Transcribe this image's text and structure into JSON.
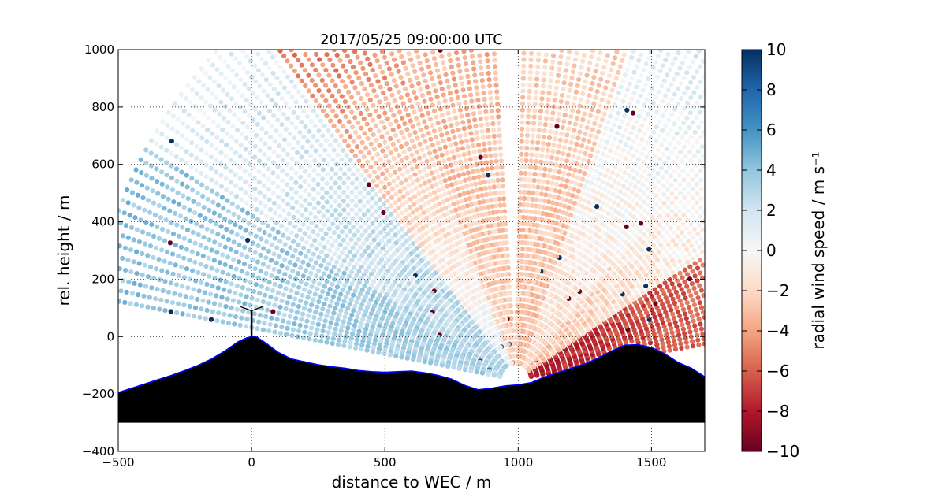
{
  "chart_data": {
    "type": "scatter",
    "subtype": "lidar RHI scan (radial wind speed, colour-coded) with terrain profile",
    "title": "2017/05/25 09:00:00 UTC",
    "xlabel": "distance to WEC / m",
    "ylabel": "rel. height / m",
    "xlim": [
      -500,
      1700
    ],
    "ylim": [
      -400,
      1000
    ],
    "xticks": [
      -500,
      0,
      500,
      1000,
      1500
    ],
    "xtick_labels": [
      "−500",
      "0",
      "500",
      "1000",
      "1500"
    ],
    "yticks": [
      -400,
      -200,
      0,
      200,
      400,
      600,
      800,
      1000
    ],
    "ytick_labels": [
      "−400",
      "−200",
      "0",
      "200",
      "400",
      "600",
      "800",
      "1000"
    ],
    "grid": true,
    "lidar_origin": {
      "x": 990,
      "y": -150
    },
    "turbine": {
      "x": 0,
      "hub_height": 90,
      "rotor_radius": 40
    },
    "terrain": {
      "x": [
        -500,
        -450,
        -400,
        -350,
        -300,
        -250,
        -200,
        -150,
        -100,
        -50,
        -20,
        0,
        20,
        50,
        100,
        150,
        200,
        250,
        300,
        350,
        400,
        450,
        500,
        550,
        600,
        650,
        700,
        750,
        800,
        850,
        900,
        950,
        1000,
        1050,
        1100,
        1150,
        1200,
        1250,
        1300,
        1350,
        1400,
        1450,
        1500,
        1550,
        1600,
        1650,
        1700
      ],
      "y": [
        -195,
        -180,
        -165,
        -150,
        -135,
        -118,
        -100,
        -78,
        -50,
        -18,
        -5,
        0,
        -2,
        -20,
        -55,
        -78,
        -88,
        -98,
        -105,
        -110,
        -118,
        -122,
        -124,
        -122,
        -120,
        -126,
        -135,
        -148,
        -170,
        -185,
        -180,
        -172,
        -168,
        -160,
        -140,
        -125,
        -110,
        -95,
        -75,
        -50,
        -30,
        -28,
        -38,
        -60,
        -90,
        -110,
        -140
      ],
      "base": -300
    },
    "colorbar": {
      "label": "radial wind speed / m s⁻¹",
      "range": [
        -10,
        10
      ],
      "ticks": [
        10,
        8,
        6,
        4,
        2,
        0,
        -2,
        -4,
        -6,
        -8,
        -10
      ],
      "tick_labels": [
        "10",
        "8",
        "6",
        "4",
        "2",
        "0",
        "−2",
        "−4",
        "−6",
        "−8",
        "−10"
      ],
      "colormap": "RdBu (red = negative, blue = positive)",
      "stops": [
        "#67001f",
        "#b2182b",
        "#d6604d",
        "#f4a582",
        "#fddbc7",
        "#f7f7f7",
        "#d1e5f0",
        "#92c5de",
        "#4393c3",
        "#2166ac",
        "#053061"
      ]
    },
    "scan": {
      "range_min_m": 60,
      "range_max_m": 1600,
      "regions": [
        {
          "from_deg": 150,
          "to_deg": 170,
          "inner_value": 3,
          "outer_value": 4,
          "note": "low beams toward turbine, light blue"
        },
        {
          "from_deg": 128,
          "to_deg": 150,
          "inner_value": 3,
          "outer_value": 1,
          "note": "pale blue"
        },
        {
          "from_deg": 112,
          "to_deg": 128,
          "inner_value": 1,
          "outer_value": -6,
          "note": "blue near ground, red aloft"
        },
        {
          "from_deg": 92,
          "to_deg": 112,
          "inner_value": -2,
          "outer_value": -4,
          "note": "light red"
        },
        {
          "from_deg": 70,
          "to_deg": 92,
          "inner_value": -3,
          "outer_value": -2,
          "note": "light red/pink"
        },
        {
          "from_deg": 48,
          "to_deg": 70,
          "inner_value": -2,
          "outer_value": 2,
          "note": "mixed, blue streaks"
        },
        {
          "from_deg": 32,
          "to_deg": 48,
          "inner_value": -3,
          "outer_value": 2,
          "note": "pale, bluish aloft"
        },
        {
          "from_deg": 10,
          "to_deg": 32,
          "inner_value": -8,
          "outer_value": -3,
          "note": "strong red near ground"
        }
      ]
    }
  }
}
